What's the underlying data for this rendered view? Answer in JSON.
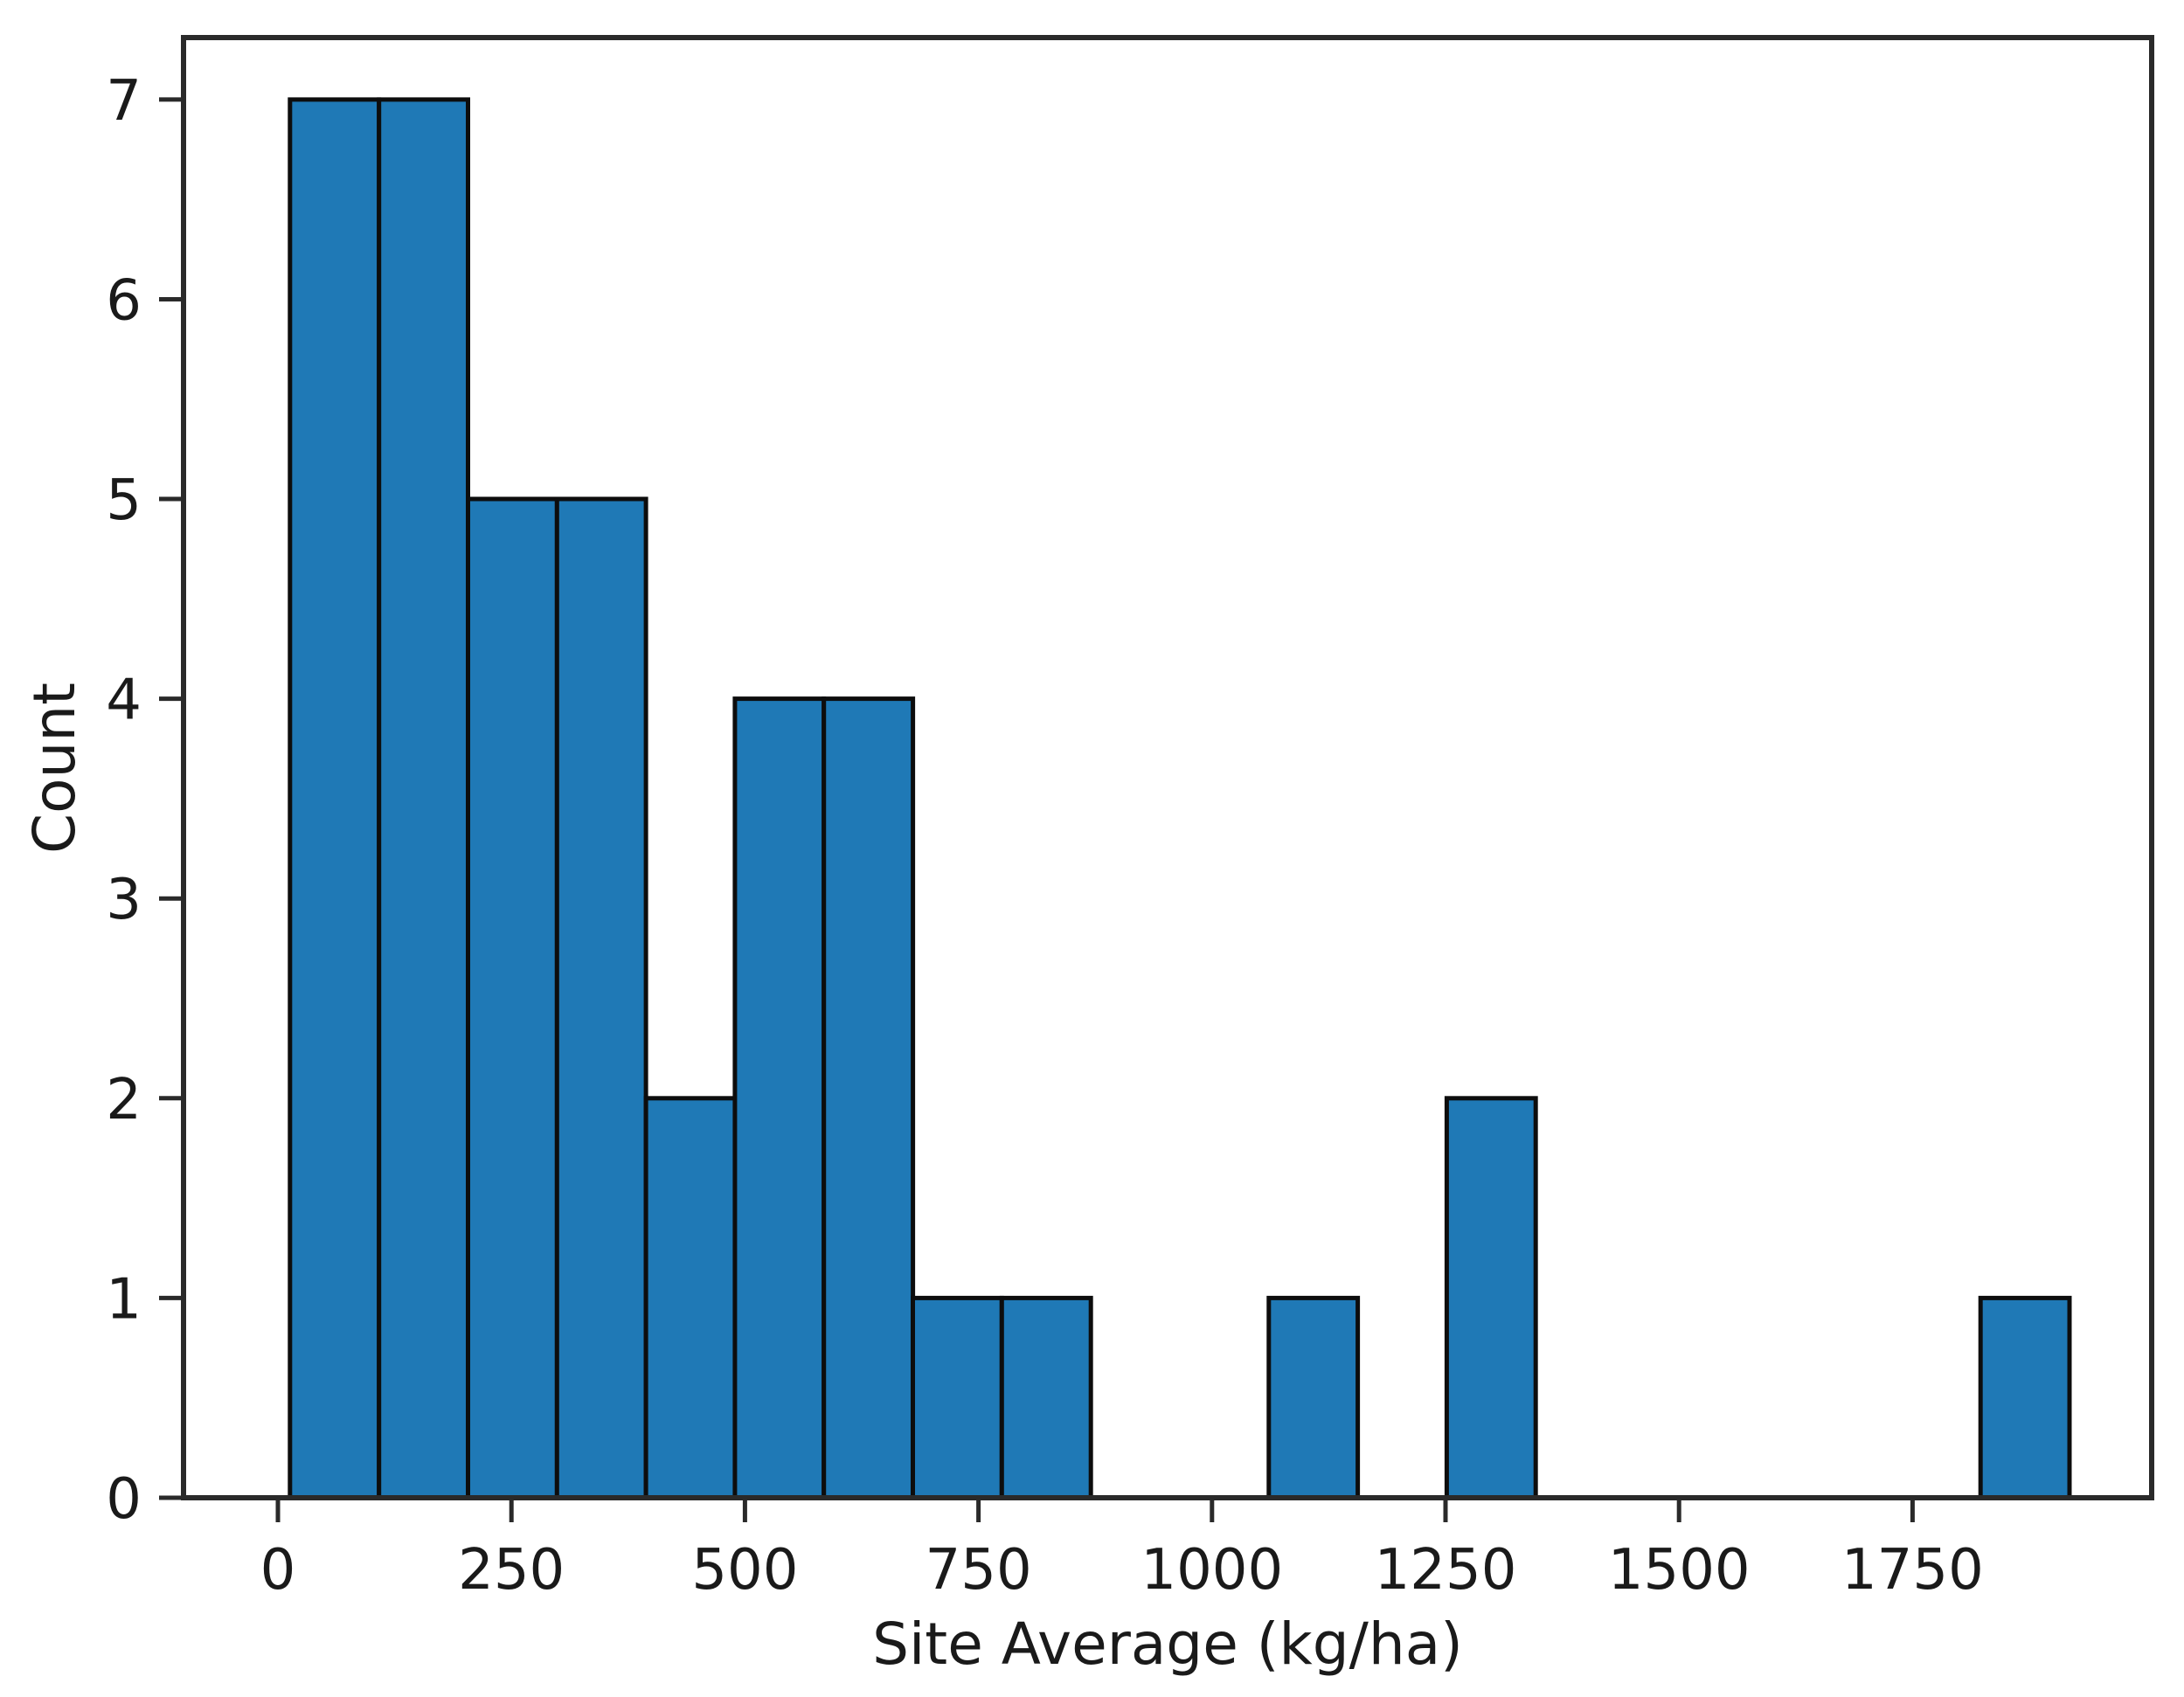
{
  "figure": {
    "background": "#ffffff"
  },
  "chart_data": {
    "type": "bar",
    "subtype": "histogram",
    "title": "",
    "xlabel": "Site Average (kg/ha)",
    "ylabel": "Count",
    "bin_edges": [
      13,
      108.3,
      203.5,
      298.8,
      394,
      489.3,
      584.5,
      679.8,
      775,
      870.3,
      965.5,
      1060.8,
      1156,
      1251.3,
      1346.5,
      1441.8,
      1537,
      1632.3,
      1727.5,
      1822.8,
      1918
    ],
    "counts": [
      7,
      7,
      5,
      5,
      2,
      4,
      4,
      1,
      1,
      0,
      0,
      1,
      0,
      2,
      0,
      0,
      0,
      0,
      0,
      1
    ],
    "total_observations": 40,
    "xticks": [
      0,
      250,
      500,
      750,
      1000,
      1250,
      1500,
      1750
    ],
    "yticks": [
      0,
      1,
      2,
      3,
      4,
      5,
      6,
      7
    ],
    "xlim": [
      -101,
      2006
    ],
    "ylim": [
      0,
      7.31
    ],
    "grid": false,
    "legend": null,
    "colors": {
      "bar_fill": "#1f79b6",
      "bar_edge": "#0d0d0d",
      "frame": "#2a2a2a",
      "tick": "#2a2a2a",
      "text": "#1a1a1a"
    }
  }
}
